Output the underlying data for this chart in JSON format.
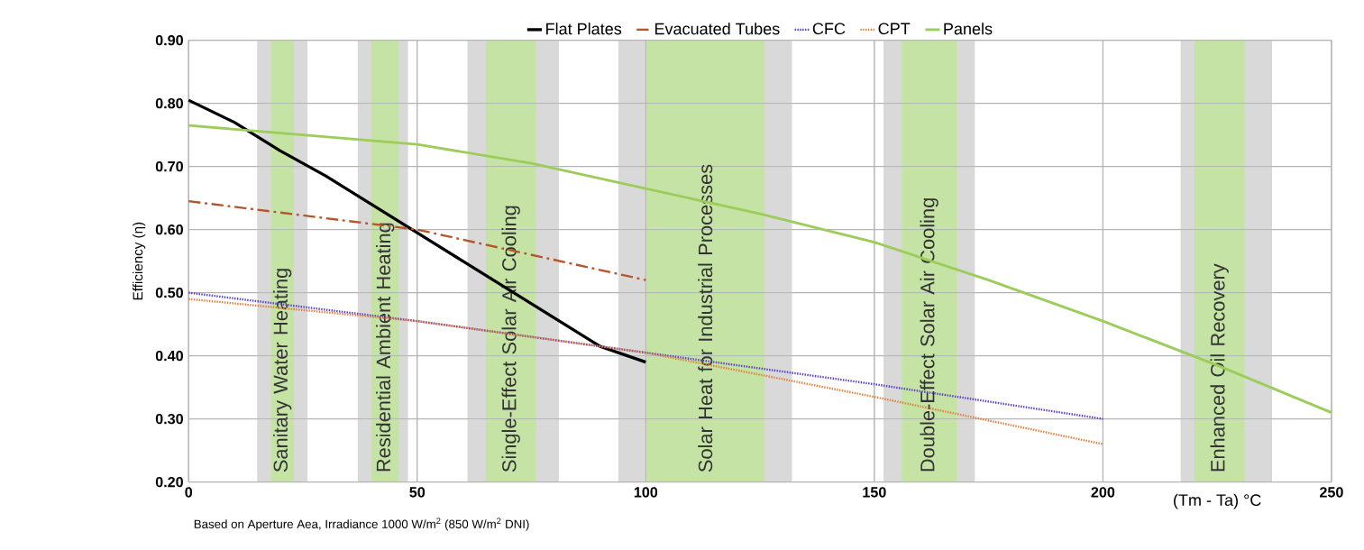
{
  "chart_data": {
    "type": "line",
    "xlabel": "(Tm - Ta) °C",
    "ylabel": "Efficiency (η)",
    "annotations": [
      "Based on Aperture Aea, Irradiance 1000 W/m$^{2}$ (850 W/m$^{2}$ DNI)"
    ],
    "xlim": [
      0,
      250
    ],
    "ylim": [
      0.2,
      0.9
    ],
    "xticks": [
      0,
      50,
      100,
      150,
      200,
      250
    ],
    "yticks": [
      {
        "value": 0.2,
        "label": "0.20"
      },
      {
        "value": 0.3,
        "label": "0.30"
      },
      {
        "value": 0.4,
        "label": "0.40"
      },
      {
        "value": 0.5,
        "label": "0.50"
      },
      {
        "value": 0.6,
        "label": "0.60"
      },
      {
        "value": 0.7,
        "label": "0.70"
      },
      {
        "value": 0.8,
        "label": "0.80"
      },
      {
        "value": 0.9,
        "label": "0.90"
      }
    ],
    "grid": true,
    "legend": "top",
    "bands": [
      {
        "axis": "x",
        "from": 15,
        "to": 26,
        "color": "#d9d9d9"
      },
      {
        "axis": "x",
        "from": 18,
        "to": 23,
        "color": "#c5e3a5",
        "label": "Sanitary Water Heating"
      },
      {
        "axis": "x",
        "from": 37,
        "to": 48,
        "color": "#d9d9d9"
      },
      {
        "axis": "x",
        "from": 40,
        "to": 46,
        "color": "#c5e3a5",
        "label": "Residential Ambient Heating"
      },
      {
        "axis": "x",
        "from": 61,
        "to": 81,
        "color": "#d9d9d9"
      },
      {
        "axis": "x",
        "from": 65,
        "to": 76,
        "color": "#c5e3a5",
        "label": "Single-Effect Solar Air Cooling"
      },
      {
        "axis": "x",
        "from": 94,
        "to": 132,
        "color": "#d9d9d9"
      },
      {
        "axis": "x",
        "from": 100,
        "to": 126,
        "color": "#c5e3a5",
        "label": "Solar Heat for Industrial Processes"
      },
      {
        "axis": "x",
        "from": 152,
        "to": 172,
        "color": "#d9d9d9"
      },
      {
        "axis": "x",
        "from": 156,
        "to": 168,
        "color": "#c5e3a5",
        "label": "Double-Effect Solar Air Cooling"
      },
      {
        "axis": "x",
        "from": 217,
        "to": 237,
        "color": "#d9d9d9"
      },
      {
        "axis": "x",
        "from": 220,
        "to": 231,
        "color": "#c5e3a5",
        "label": "Enhanced Oil Recovery"
      }
    ],
    "series": [
      {
        "name": "Flat Plates",
        "color": "#000000",
        "line_style": "solid",
        "x": [
          0,
          10,
          20,
          30,
          40,
          50,
          60,
          70,
          80,
          90,
          100
        ],
        "values": [
          0.805,
          0.77,
          0.725,
          0.685,
          0.64,
          0.595,
          0.55,
          0.505,
          0.46,
          0.415,
          0.39
        ]
      },
      {
        "name": "Evacuated Tubes",
        "color": "#b5562a",
        "line_style": "dashdot",
        "x": [
          0,
          50,
          100
        ],
        "values": [
          0.645,
          0.6,
          0.52
        ]
      },
      {
        "name": "CFC",
        "color": "#5b3fc4",
        "line_style": "dotted",
        "x": [
          0,
          50,
          100,
          150,
          200
        ],
        "values": [
          0.5,
          0.455,
          0.405,
          0.355,
          0.3
        ]
      },
      {
        "name": "CPT",
        "color": "#e0803a",
        "line_style": "dotted",
        "x": [
          0,
          50,
          100,
          150,
          200
        ],
        "values": [
          0.49,
          0.455,
          0.405,
          0.335,
          0.26
        ]
      },
      {
        "name": "Panels",
        "color": "#9ccc5a",
        "line_style": "solid",
        "x": [
          0,
          25,
          50,
          75,
          100,
          125,
          150,
          175,
          200,
          225,
          250
        ],
        "values": [
          0.765,
          0.75,
          0.735,
          0.705,
          0.665,
          0.625,
          0.58,
          0.52,
          0.455,
          0.385,
          0.31
        ]
      }
    ]
  }
}
